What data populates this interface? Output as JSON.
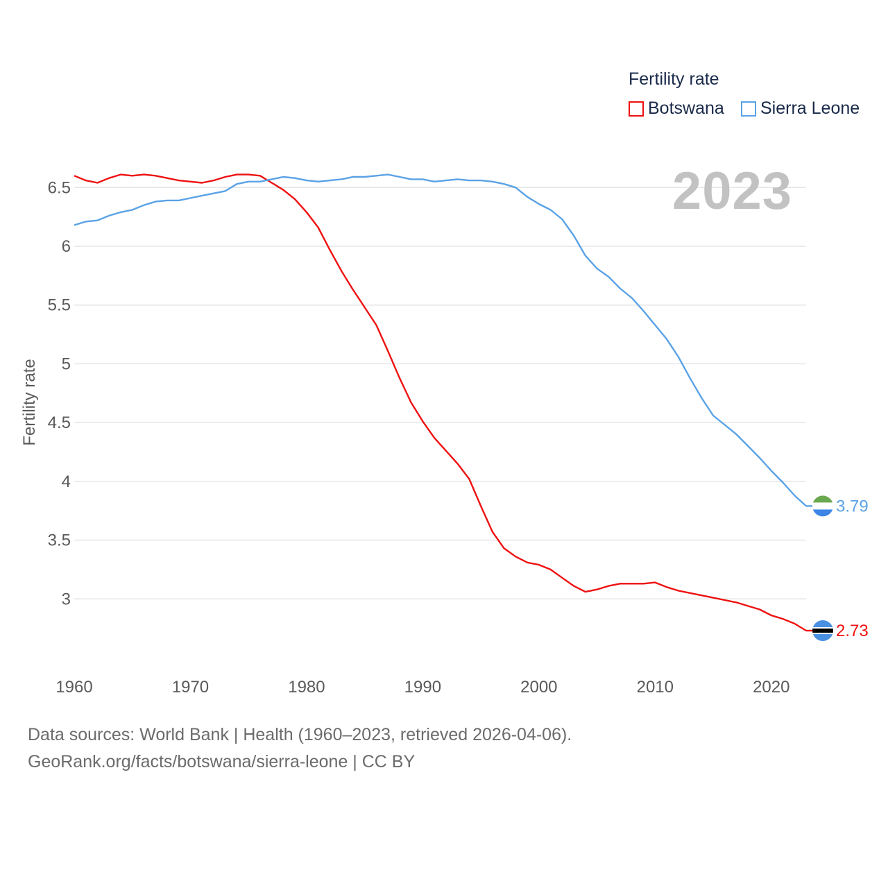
{
  "legend": {
    "title": "Fertility rate",
    "items": [
      {
        "label": "Botswana",
        "color": "#ee1111"
      },
      {
        "label": "Sierra Leone",
        "color": "#5aa2e6"
      }
    ]
  },
  "year_label": "2023",
  "footer": {
    "line1": "Data sources: World Bank | Health (1960–2023, retrieved 2026-04-06).",
    "line2": "GeoRank.org/facts/botswana/sierra-leone | CC BY"
  },
  "chart_data": {
    "type": "line",
    "title": "Fertility rate",
    "xlabel": "",
    "ylabel": "Fertility rate",
    "xlim": [
      1960,
      2023
    ],
    "ylim": [
      2.5,
      6.72
    ],
    "xticks": [
      1960,
      1970,
      1980,
      1990,
      2000,
      2010,
      2020
    ],
    "yticks": [
      3,
      3.5,
      4,
      4.5,
      5,
      5.5,
      6,
      6.5
    ],
    "ytick_labels": [
      "3",
      "3.5",
      "4",
      "4.5",
      "5",
      "5.5",
      "6",
      "6.5"
    ],
    "grid": true,
    "legend_position": "top-right",
    "x": [
      1960,
      1961,
      1962,
      1963,
      1964,
      1965,
      1966,
      1967,
      1968,
      1969,
      1970,
      1971,
      1972,
      1973,
      1974,
      1975,
      1976,
      1977,
      1978,
      1979,
      1980,
      1981,
      1982,
      1983,
      1984,
      1985,
      1986,
      1987,
      1988,
      1989,
      1990,
      1991,
      1992,
      1993,
      1994,
      1995,
      1996,
      1997,
      1998,
      1999,
      2000,
      2001,
      2002,
      2003,
      2004,
      2005,
      2006,
      2007,
      2008,
      2009,
      2010,
      2011,
      2012,
      2013,
      2014,
      2015,
      2016,
      2017,
      2018,
      2019,
      2020,
      2021,
      2022,
      2023
    ],
    "series": [
      {
        "name": "Botswana",
        "color": "#ee1111",
        "end_label": "2.73",
        "values": [
          6.6,
          6.56,
          6.54,
          6.58,
          6.61,
          6.6,
          6.61,
          6.6,
          6.58,
          6.56,
          6.55,
          6.54,
          6.56,
          6.59,
          6.61,
          6.61,
          6.6,
          6.54,
          6.48,
          6.4,
          6.29,
          6.16,
          5.97,
          5.79,
          5.63,
          5.48,
          5.33,
          5.11,
          4.88,
          4.67,
          4.51,
          4.37,
          4.26,
          4.15,
          4.02,
          3.79,
          3.57,
          3.43,
          3.36,
          3.31,
          3.29,
          3.25,
          3.18,
          3.11,
          3.06,
          3.08,
          3.11,
          3.13,
          3.13,
          3.13,
          3.14,
          3.1,
          3.07,
          3.05,
          3.03,
          3.01,
          2.99,
          2.97,
          2.94,
          2.91,
          2.86,
          2.83,
          2.79,
          2.73
        ]
      },
      {
        "name": "Sierra Leone",
        "color": "#5aa2e6",
        "end_label": "3.79",
        "values": [
          6.18,
          6.21,
          6.22,
          6.26,
          6.29,
          6.31,
          6.35,
          6.38,
          6.39,
          6.39,
          6.41,
          6.43,
          6.45,
          6.47,
          6.53,
          6.55,
          6.55,
          6.57,
          6.59,
          6.58,
          6.56,
          6.55,
          6.56,
          6.57,
          6.59,
          6.59,
          6.6,
          6.61,
          6.59,
          6.57,
          6.57,
          6.55,
          6.56,
          6.57,
          6.56,
          6.56,
          6.55,
          6.53,
          6.5,
          6.42,
          6.36,
          6.31,
          6.23,
          6.09,
          5.92,
          5.81,
          5.74,
          5.64,
          5.56,
          5.45,
          5.33,
          5.21,
          5.06,
          4.88,
          4.71,
          4.56,
          4.48,
          4.4,
          4.3,
          4.2,
          4.09,
          3.99,
          3.88,
          3.79
        ]
      }
    ]
  }
}
